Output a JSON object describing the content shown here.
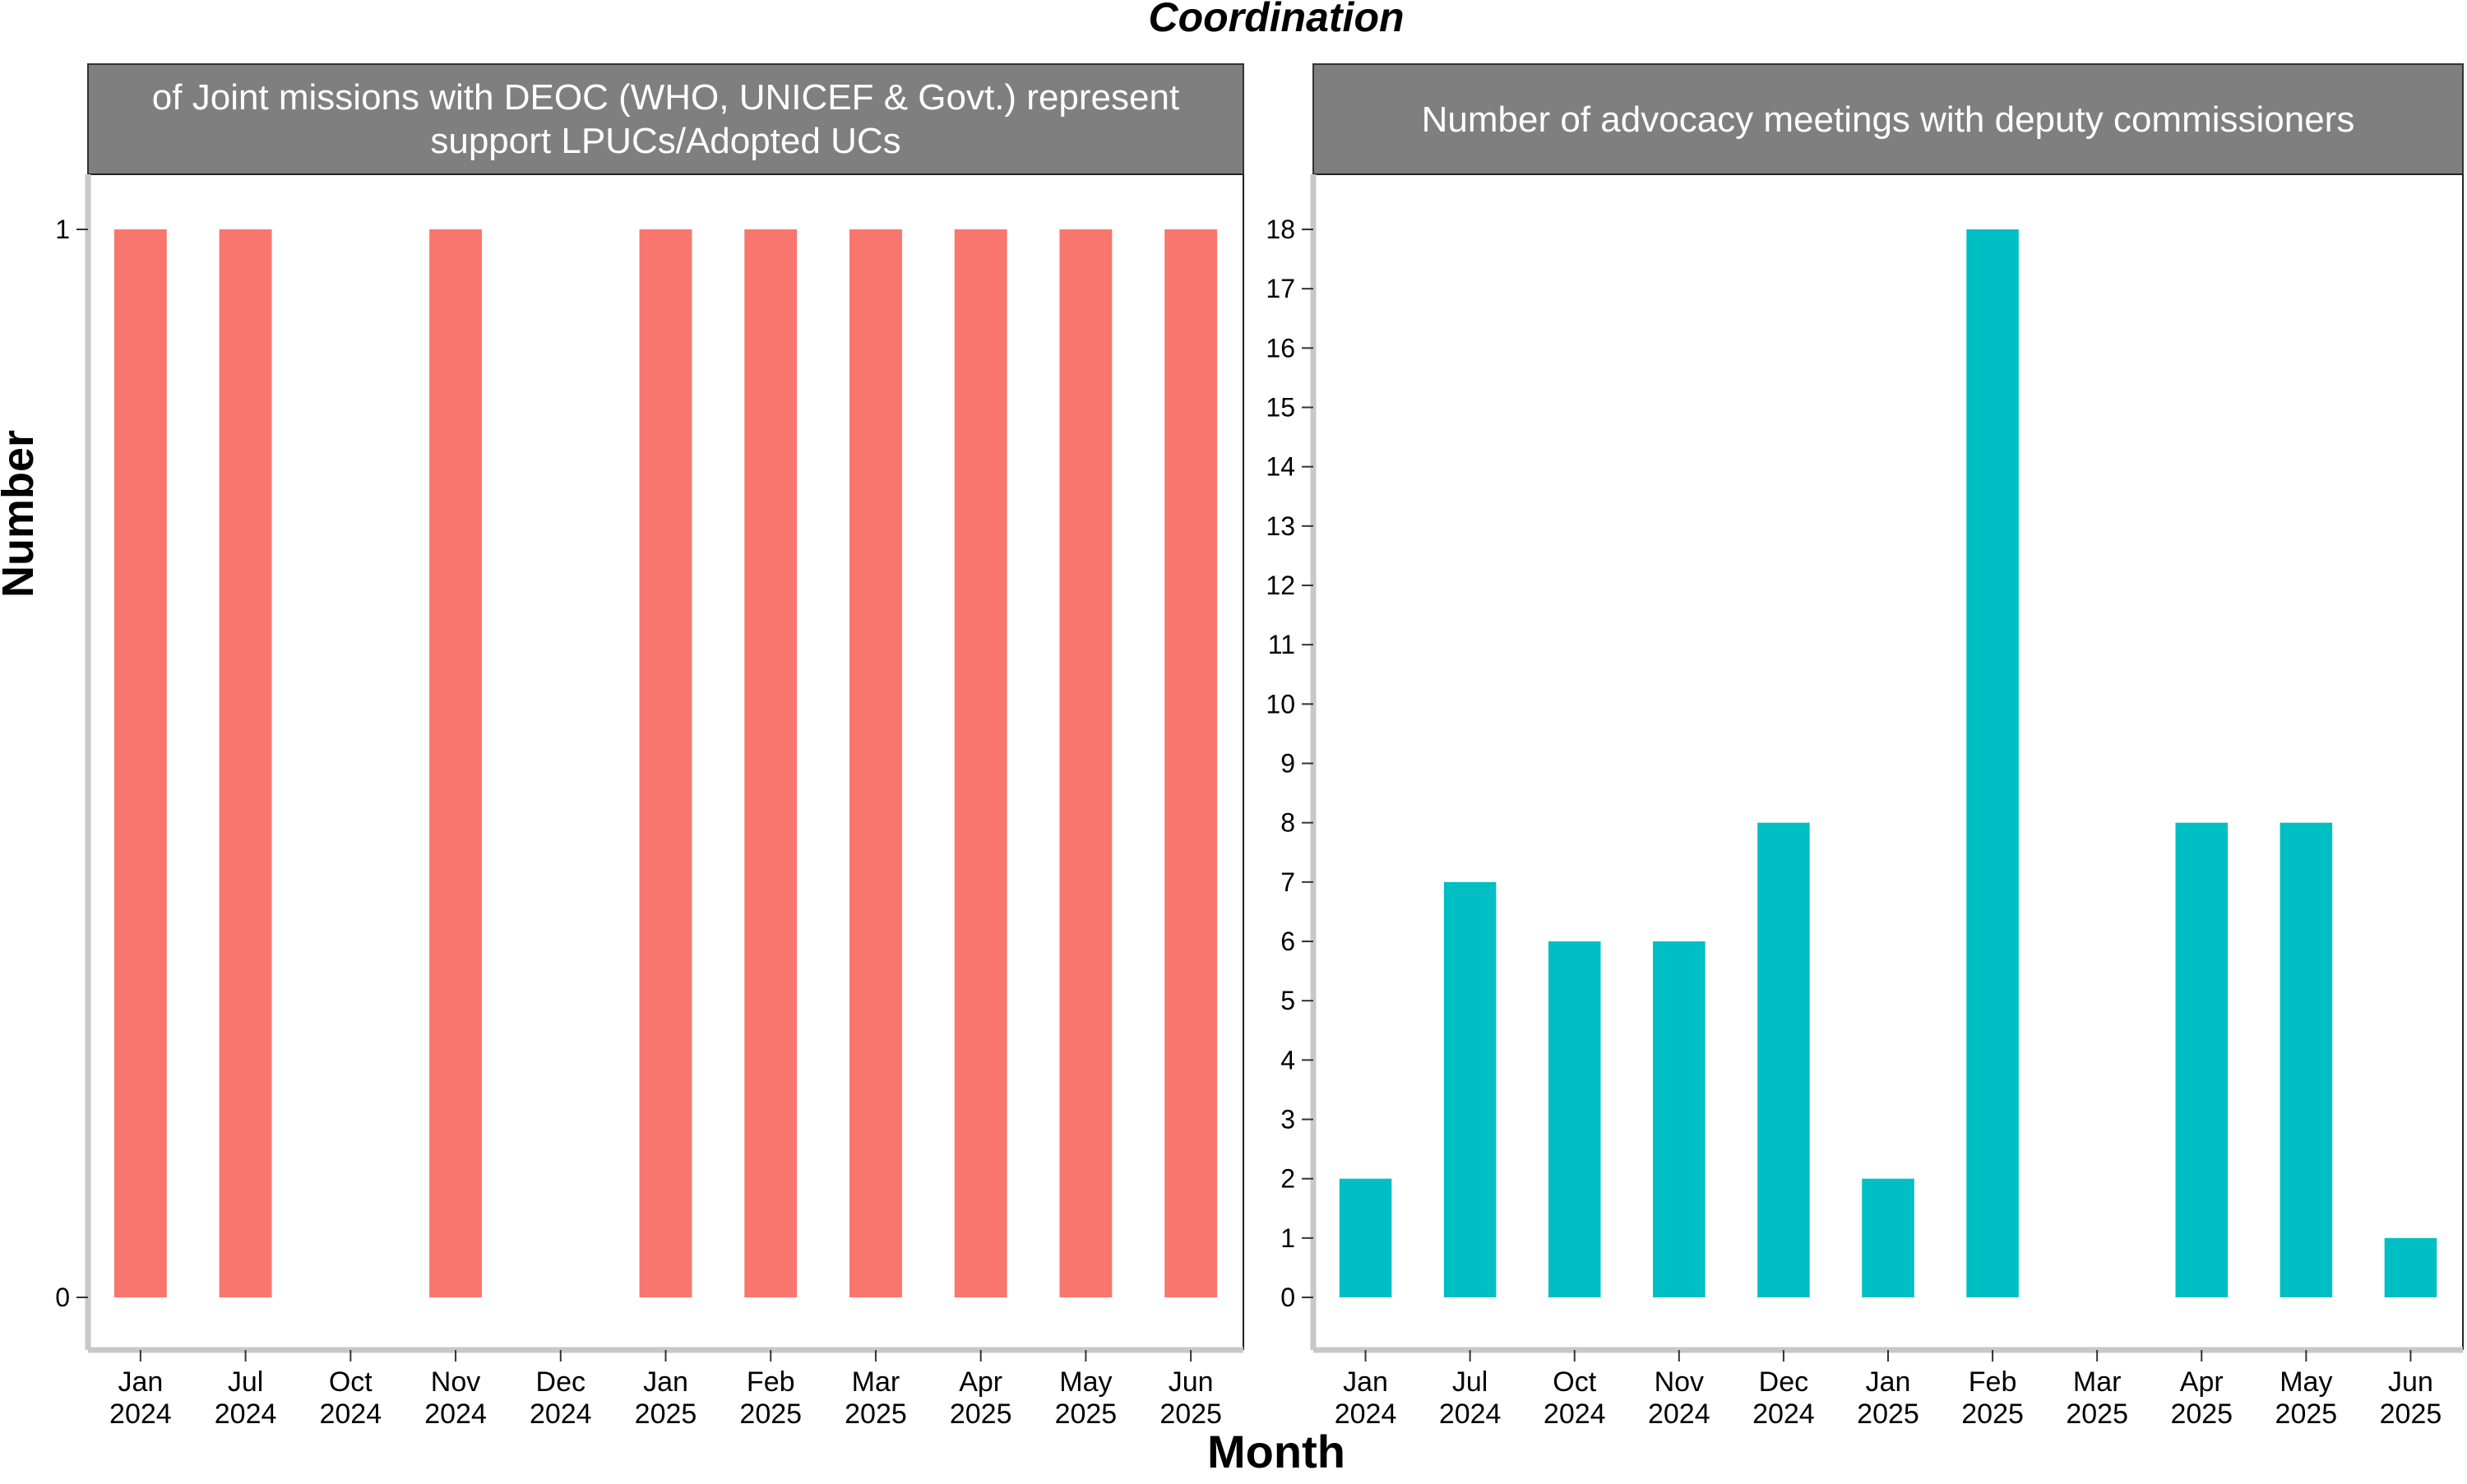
{
  "chart_data": {
    "title": "Coordination",
    "xlabel": "Month",
    "ylabel": "Number",
    "categories": [
      [
        "Jan",
        "2024"
      ],
      [
        "Jul",
        "2024"
      ],
      [
        "Oct",
        "2024"
      ],
      [
        "Nov",
        "2024"
      ],
      [
        "Dec",
        "2024"
      ],
      [
        "Jan",
        "2025"
      ],
      [
        "Feb",
        "2025"
      ],
      [
        "Mar",
        "2025"
      ],
      [
        "Apr",
        "2025"
      ],
      [
        "May",
        "2025"
      ],
      [
        "Jun",
        "2025"
      ]
    ],
    "panels": [
      {
        "type": "bar",
        "strip_lines": [
          "of Joint missions with DEOC (WHO, UNICEF & Govt.) represent",
          "support LPUCs/Adopted UCs"
        ],
        "color": "#F8766D",
        "ylim": [
          0,
          1
        ],
        "yticks": [
          0,
          1
        ],
        "values": [
          1,
          1,
          0,
          1,
          0,
          1,
          1,
          1,
          1,
          1,
          1
        ]
      },
      {
        "type": "bar",
        "strip_lines": [
          "Number of advocacy meetings with deputy commissioners"
        ],
        "color": "#00BFC4",
        "ylim": [
          0,
          18
        ],
        "yticks": [
          0,
          1,
          2,
          3,
          4,
          5,
          6,
          7,
          8,
          9,
          10,
          11,
          12,
          13,
          14,
          15,
          16,
          17,
          18
        ],
        "values": [
          2,
          7,
          6,
          6,
          8,
          2,
          18,
          0,
          8,
          8,
          1
        ]
      }
    ],
    "grid": false
  }
}
